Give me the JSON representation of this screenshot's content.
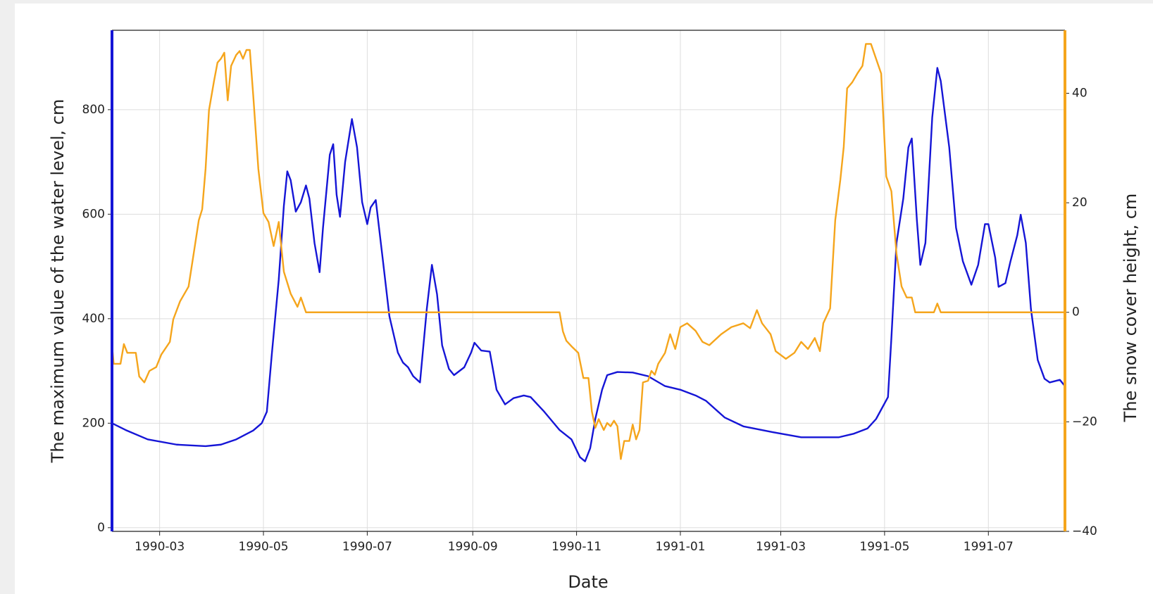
{
  "chart_data": {
    "type": "line",
    "x_label": "Date",
    "y_label": "The maximum value of the water level, cm",
    "y2_label": "The snow cover height, cm",
    "xlim": [
      "1990-02-01",
      "1991-08-15"
    ],
    "xticks": [
      "1990-03",
      "1990-05",
      "1990-07",
      "1990-09",
      "1990-11",
      "1991-01",
      "1991-03",
      "1991-05",
      "1991-07"
    ],
    "ylim": [
      -7,
      952
    ],
    "yticks": [
      0,
      200,
      400,
      600,
      800
    ],
    "y2lim": [
      -40,
      51.5
    ],
    "y2ticks": [
      {
        "value": -40,
        "label": "−40"
      },
      {
        "value": -20,
        "label": "−20"
      },
      0,
      20,
      40
    ],
    "grid": true,
    "series": [
      {
        "color": "#1515d6",
        "axis": "y",
        "x": [
          "1990-02-01",
          "1990-02-09",
          "1990-02-22",
          "1990-03-11",
          "1990-03-28",
          "1990-04-06",
          "1990-04-15",
          "1990-04-25",
          "1990-04-30",
          "1990-05-03",
          "1990-05-06",
          "1990-05-10",
          "1990-05-13",
          "1990-05-15",
          "1990-05-17",
          "1990-05-20",
          "1990-05-23",
          "1990-05-26",
          "1990-05-28",
          "1990-05-31",
          "1990-06-03",
          "1990-06-05",
          "1990-06-09",
          "1990-06-11",
          "1990-06-13",
          "1990-06-15",
          "1990-06-18",
          "1990-06-22",
          "1990-06-25",
          "1990-06-28",
          "1990-07-01",
          "1990-07-03",
          "1990-07-06",
          "1990-07-10",
          "1990-07-14",
          "1990-07-19",
          "1990-07-22",
          "1990-07-25",
          "1990-07-28",
          "1990-08-01",
          "1990-08-05",
          "1990-08-08",
          "1990-08-11",
          "1990-08-14",
          "1990-08-18",
          "1990-08-21",
          "1990-08-27",
          "1990-08-31",
          "1990-09-02",
          "1990-09-06",
          "1990-09-11",
          "1990-09-15",
          "1990-09-20",
          "1990-09-25",
          "1990-10-01",
          "1990-10-05",
          "1990-10-13",
          "1990-10-22",
          "1990-10-29",
          "1990-11-03",
          "1990-11-06",
          "1990-11-09",
          "1990-11-12",
          "1990-11-16",
          "1990-11-19",
          "1990-11-25",
          "1990-12-04",
          "1990-12-13",
          "1990-12-23",
          "1991-01-01",
          "1991-01-10",
          "1991-01-16",
          "1991-01-27",
          "1991-02-07",
          "1991-02-24",
          "1991-03-13",
          "1991-04-04",
          "1991-04-13",
          "1991-04-21",
          "1991-04-26",
          "1991-05-03",
          "1991-05-05",
          "1991-05-08",
          "1991-05-12",
          "1991-05-15",
          "1991-05-17",
          "1991-05-20",
          "1991-05-22",
          "1991-05-25",
          "1991-05-29",
          "1991-06-01",
          "1991-06-03",
          "1991-06-08",
          "1991-06-12",
          "1991-06-16",
          "1991-06-21",
          "1991-06-25",
          "1991-06-29",
          "1991-07-01",
          "1991-07-05",
          "1991-07-07",
          "1991-07-11",
          "1991-07-14",
          "1991-07-18",
          "1991-07-20",
          "1991-07-23",
          "1991-07-26",
          "1991-07-30",
          "1991-08-03",
          "1991-08-06",
          "1991-08-12",
          "1991-08-15"
        ],
        "values": [
          200,
          187,
          169,
          159,
          156,
          159,
          169,
          186,
          200,
          222,
          335,
          475,
          616,
          682,
          665,
          605,
          623,
          655,
          630,
          545,
          489,
          574,
          714,
          734,
          637,
          595,
          700,
          782,
          728,
          623,
          581,
          613,
          627,
          517,
          405,
          335,
          316,
          307,
          290,
          278,
          419,
          503,
          447,
          349,
          304,
          292,
          307,
          335,
          354,
          339,
          337,
          264,
          236,
          248,
          253,
          250,
          222,
          187,
          169,
          135,
          127,
          152,
          208,
          264,
          292,
          298,
          297,
          290,
          271,
          264,
          253,
          243,
          211,
          194,
          183,
          173,
          173,
          180,
          190,
          208,
          250,
          363,
          545,
          630,
          728,
          745,
          588,
          503,
          545,
          785,
          880,
          855,
          728,
          574,
          510,
          465,
          503,
          581,
          581,
          517,
          461,
          468,
          510,
          560,
          599,
          545,
          419,
          321,
          285,
          278,
          283,
          271
        ]
      },
      {
        "color": "#f5a51c",
        "axis": "y2",
        "x": [
          "1990-02-01",
          "1990-02-02",
          "1990-02-06",
          "1990-02-08",
          "1990-02-10",
          "1990-02-15",
          "1990-02-17",
          "1990-02-20",
          "1990-02-23",
          "1990-02-27",
          "1990-03-02",
          "1990-03-07",
          "1990-03-09",
          "1990-03-13",
          "1990-03-18",
          "1990-03-21",
          "1990-03-24",
          "1990-03-26",
          "1990-03-28",
          "1990-03-30",
          "1990-04-02",
          "1990-04-04",
          "1990-04-06",
          "1990-04-08",
          "1990-04-10",
          "1990-04-12",
          "1990-04-15",
          "1990-04-17",
          "1990-04-19",
          "1990-04-21",
          "1990-04-23",
          "1990-04-25",
          "1990-04-28",
          "1990-05-01",
          "1990-05-04",
          "1990-05-07",
          "1990-05-10",
          "1990-05-13",
          "1990-05-17",
          "1990-05-21",
          "1990-05-23",
          "1990-05-26",
          "1990-10-22",
          "1990-10-24",
          "1990-10-26",
          "1990-10-29",
          "1990-11-02",
          "1990-11-05",
          "1990-11-08",
          "1990-11-10",
          "1990-11-12",
          "1990-11-14",
          "1990-11-17",
          "1990-11-19",
          "1990-11-21",
          "1990-11-23",
          "1990-11-25",
          "1990-11-27",
          "1990-11-29",
          "1990-12-02",
          "1990-12-04",
          "1990-12-06",
          "1990-12-08",
          "1990-12-10",
          "1990-12-13",
          "1990-12-15",
          "1990-12-17",
          "1990-12-19",
          "1990-12-23",
          "1990-12-26",
          "1990-12-29",
          "1991-01-01",
          "1991-01-05",
          "1991-01-10",
          "1991-01-14",
          "1991-01-18",
          "1991-01-25",
          "1991-01-31",
          "1991-02-07",
          "1991-02-11",
          "1991-02-15",
          "1991-02-18",
          "1991-02-23",
          "1991-02-26",
          "1991-03-04",
          "1991-03-09",
          "1991-03-13",
          "1991-03-17",
          "1991-03-21",
          "1991-03-24",
          "1991-03-26",
          "1991-03-30",
          "1991-04-02",
          "1991-04-05",
          "1991-04-07",
          "1991-04-09",
          "1991-04-12",
          "1991-04-15",
          "1991-04-18",
          "1991-04-20",
          "1991-04-23",
          "1991-04-26",
          "1991-04-29",
          "1991-05-02",
          "1991-05-05",
          "1991-05-08",
          "1991-05-11",
          "1991-05-14",
          "1991-05-17",
          "1991-05-19",
          "1991-05-30",
          "1991-06-01",
          "1991-06-03",
          "1991-08-15"
        ],
        "values": [
          -6,
          -9.4,
          -9.4,
          -5.8,
          -7.4,
          -7.4,
          -11.7,
          -12.8,
          -10.7,
          -10,
          -7.7,
          -5.4,
          -1.3,
          2,
          4.7,
          10.7,
          16.8,
          18.8,
          26.2,
          36.9,
          42.3,
          45.6,
          46.3,
          47.4,
          38.7,
          45,
          47,
          47.7,
          46.3,
          47.9,
          47.9,
          39.6,
          26.2,
          18.1,
          16.5,
          12.1,
          16.5,
          7.4,
          3.4,
          1,
          2.7,
          0,
          0,
          -3.5,
          -5.2,
          -6.2,
          -7.4,
          -12,
          -12,
          -18.1,
          -21.1,
          -19.5,
          -21.5,
          -20.2,
          -20.8,
          -19.8,
          -20.8,
          -26.8,
          -23.5,
          -23.5,
          -20.5,
          -23.2,
          -21.5,
          -12.8,
          -12.5,
          -10.7,
          -11.4,
          -9.4,
          -7.4,
          -4,
          -6.7,
          -2.7,
          -2,
          -3.4,
          -5.4,
          -6,
          -4,
          -2.7,
          -2,
          -2.9,
          0.4,
          -2,
          -4,
          -7.1,
          -8.5,
          -7.4,
          -5.4,
          -6.7,
          -4.7,
          -7.1,
          -2,
          0.7,
          16.8,
          24.2,
          30.2,
          40.9,
          42,
          43.6,
          45,
          49,
          49,
          46.3,
          43.6,
          24.8,
          22.1,
          10.7,
          4.7,
          2.7,
          2.7,
          0,
          0,
          1.6,
          0,
          0
        ]
      }
    ]
  }
}
